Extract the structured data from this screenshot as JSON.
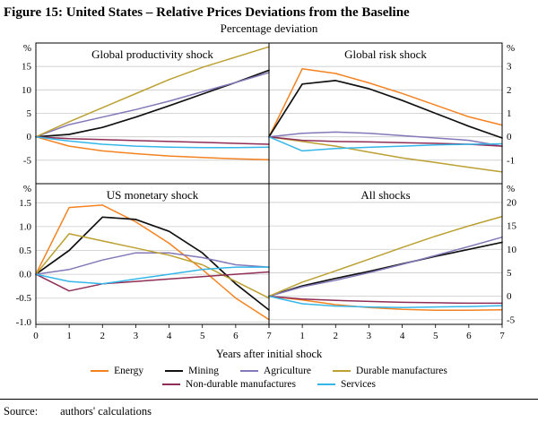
{
  "figure": {
    "title": "Figure 15: United States – Relative Prices Deviations from the Baseline",
    "subtitle": "Percentage deviation",
    "source_label": "Source:",
    "source_text": "authors' calculations"
  },
  "series": [
    {
      "name": "Energy",
      "color": "#F58220"
    },
    {
      "name": "Mining",
      "color": "#111111"
    },
    {
      "name": "Agriculture",
      "color": "#8478B8"
    },
    {
      "name": "Durable manufactures",
      "color": "#BCA032"
    },
    {
      "name": "Non-durable manufactures",
      "color": "#8F2D56"
    },
    {
      "name": "Services",
      "color": "#35B6E9"
    }
  ],
  "chart_data": {
    "type": "line",
    "x": [
      0,
      1,
      2,
      3,
      4,
      5,
      6,
      7
    ],
    "xtick_labels": [
      "0",
      "1",
      "2",
      "3",
      "4",
      "5",
      "6",
      "7"
    ],
    "xlabel": "Years after initial shock",
    "grid": true,
    "legend_position": "bottom",
    "panels": [
      {
        "title": "Global productivity shock",
        "axis_side": "left",
        "unit": "%",
        "ylim": [
          -10,
          20
        ],
        "ytick_values": [
          15,
          10,
          5,
          0,
          -5
        ],
        "ytick_labels": [
          "15",
          "10",
          "5",
          "0",
          "-5"
        ],
        "series": {
          "Energy": [
            0,
            -2.0,
            -3.0,
            -3.6,
            -4.1,
            -4.4,
            -4.7,
            -4.9
          ],
          "Mining": [
            0,
            0.5,
            2.0,
            4.2,
            6.6,
            9.1,
            11.6,
            14.2
          ],
          "Agriculture": [
            0,
            2.6,
            4.2,
            5.8,
            7.6,
            9.6,
            11.6,
            13.7
          ],
          "Durable manufactures": [
            0,
            3.2,
            6.2,
            9.2,
            12.2,
            14.8,
            17.0,
            19.2
          ],
          "Non-durable manufactures": [
            0,
            -0.4,
            -0.6,
            -0.8,
            -1.0,
            -1.2,
            -1.4,
            -1.6
          ],
          "Services": [
            0,
            -0.9,
            -1.6,
            -2.0,
            -2.2,
            -2.3,
            -2.3,
            -2.2
          ]
        }
      },
      {
        "title": "Global risk shock",
        "axis_side": "right",
        "unit": "%",
        "ylim": [
          -2,
          4
        ],
        "ytick_values": [
          3,
          2,
          1,
          0,
          -1
        ],
        "ytick_labels": [
          "3",
          "2",
          "1",
          "0",
          "-1"
        ],
        "series": {
          "Energy": [
            0,
            2.9,
            2.7,
            2.3,
            1.85,
            1.35,
            0.85,
            0.5
          ],
          "Mining": [
            0,
            2.25,
            2.4,
            2.05,
            1.55,
            1.0,
            0.45,
            -0.05
          ],
          "Agriculture": [
            0,
            0.15,
            0.2,
            0.15,
            0.05,
            -0.05,
            -0.15,
            -0.4
          ],
          "Durable manufactures": [
            0,
            -0.2,
            -0.4,
            -0.65,
            -0.9,
            -1.1,
            -1.3,
            -1.5
          ],
          "Non-durable manufactures": [
            0,
            -0.15,
            -0.2,
            -0.22,
            -0.25,
            -0.28,
            -0.32,
            -0.4
          ],
          "Services": [
            0,
            -0.6,
            -0.5,
            -0.45,
            -0.4,
            -0.35,
            -0.32,
            -0.3
          ]
        }
      },
      {
        "title": "US monetary shock",
        "axis_side": "left",
        "unit": "%",
        "ylim": [
          -1.05,
          1.9
        ],
        "ytick_values": [
          1.5,
          1.0,
          0.5,
          0.0,
          -0.5,
          -1.0
        ],
        "ytick_labels": [
          "1.5",
          "1.0",
          "0.5",
          "0.0",
          "-0.5",
          "-1.0"
        ],
        "series": {
          "Energy": [
            0,
            1.4,
            1.45,
            1.1,
            0.65,
            0.1,
            -0.5,
            -0.95
          ],
          "Mining": [
            0,
            0.5,
            1.2,
            1.15,
            0.9,
            0.45,
            -0.2,
            -0.75
          ],
          "Agriculture": [
            0,
            0.1,
            0.3,
            0.45,
            0.45,
            0.35,
            0.2,
            0.15
          ],
          "Durable manufactures": [
            0,
            0.85,
            0.7,
            0.55,
            0.4,
            0.2,
            -0.15,
            -0.5
          ],
          "Non-durable manufactures": [
            0,
            -0.35,
            -0.2,
            -0.15,
            -0.1,
            -0.05,
            0.0,
            0.05
          ],
          "Services": [
            0,
            -0.15,
            -0.2,
            -0.1,
            0.0,
            0.1,
            0.15,
            0.15
          ]
        }
      },
      {
        "title": "All shocks",
        "axis_side": "right",
        "unit": "%",
        "ylim": [
          -6,
          24
        ],
        "ytick_values": [
          20,
          15,
          10,
          5,
          0,
          -5
        ],
        "ytick_labels": [
          "20",
          "15",
          "10",
          "5",
          "0",
          "-5"
        ],
        "series": {
          "Energy": [
            0,
            -0.8,
            -1.8,
            -2.4,
            -2.8,
            -3.0,
            -3.0,
            -2.9
          ],
          "Mining": [
            0,
            2.2,
            3.8,
            5.3,
            6.9,
            8.5,
            10.0,
            11.5
          ],
          "Agriculture": [
            0,
            2.0,
            3.4,
            5.0,
            6.8,
            8.7,
            10.6,
            12.6
          ],
          "Durable manufactures": [
            0,
            3.0,
            5.4,
            7.9,
            10.4,
            12.8,
            15.0,
            17.0
          ],
          "Non-durable manufactures": [
            0,
            -0.6,
            -0.9,
            -1.1,
            -1.3,
            -1.4,
            -1.5,
            -1.5
          ],
          "Services": [
            0,
            -1.6,
            -2.1,
            -2.3,
            -2.4,
            -2.3,
            -2.2,
            -2.0
          ]
        }
      }
    ]
  }
}
